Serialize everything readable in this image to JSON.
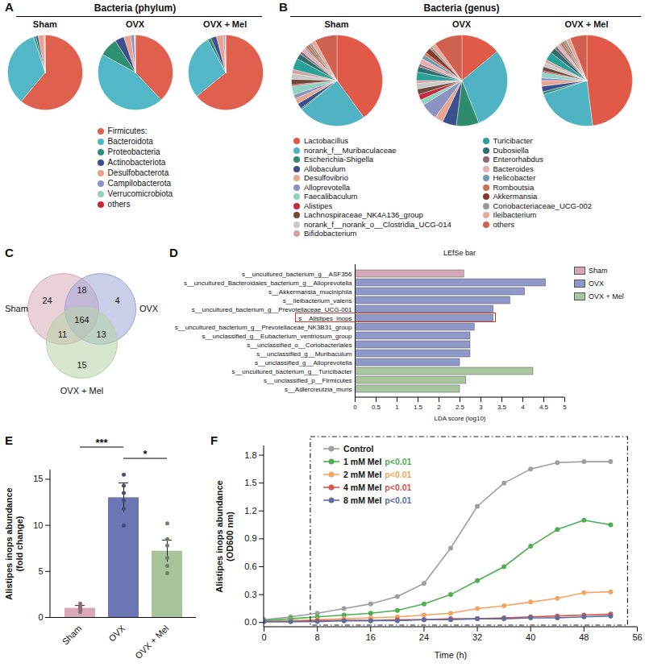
{
  "chart_data": [
    {
      "panel": "A",
      "type": "pie",
      "title": "Bacteria (phylum)",
      "categories": [
        "Firmicutes:",
        "Bacteroidota",
        "Proteobacteria",
        "Actinobacteriota",
        "Desulfobacterota",
        "Campilobacterota",
        "Verrucomicrobiota",
        "others"
      ],
      "colors": [
        "#e0604e",
        "#52b8c8",
        "#2f8f72",
        "#3e4f8e",
        "#e9a28e",
        "#8b93c3",
        "#8fd3c0",
        "#c52a3a"
      ],
      "series": [
        {
          "name": "Sham",
          "values": [
            61,
            34,
            1,
            1,
            2.5,
            0.3,
            0.1,
            0.1
          ]
        },
        {
          "name": "OVX",
          "values": [
            38,
            45,
            8,
            4,
            3,
            1.5,
            0.4,
            0.1
          ]
        },
        {
          "name": "OVX + Mel",
          "values": [
            64,
            28,
            1.5,
            2.5,
            3,
            0.7,
            0.2,
            0.1
          ]
        }
      ]
    },
    {
      "panel": "B",
      "type": "pie",
      "title": "Bacteria (genus)",
      "categories": [
        "Lactobacillus",
        "norank_f__Muribaculaceae",
        "Escherichia-Shigella",
        "Allobaculum",
        "Desulfovibrio",
        "Alloprevotella",
        "Faecalibaculum",
        "Alistipes",
        "Lachnospiraceae_NK4A136_group",
        "norank_f__norank_o__Clostridia_UCG-014",
        "Bifidobacterium",
        "Turicibacter",
        "Dubosiella",
        "Enterorhabdus",
        "Bacteroides",
        "Helicobacter",
        "Romboutsia",
        "Akkermansia",
        "Coriobacteriaceae_UCG-002",
        "Ileibacterium",
        "others"
      ],
      "colors": [
        "#e05a47",
        "#4fb3c4",
        "#2e8b6e",
        "#3b4f8c",
        "#e8a58f",
        "#8a93c2",
        "#8fd3c1",
        "#c7283c",
        "#6b4a3a",
        "#c8c8c8",
        "#d9a0a0",
        "#2aa198",
        "#2e6e6e",
        "#8c6a7a",
        "#e6b0b0",
        "#6e9ab8",
        "#c8734e",
        "#8b3a2a",
        "#999999",
        "#eba898",
        "#d06050"
      ],
      "series": [
        {
          "name": "Sham",
          "values": [
            40,
            24,
            0.5,
            2,
            2,
            1.5,
            3,
            0.5,
            2,
            2,
            1.5,
            4,
            2,
            1,
            1.5,
            0.5,
            1,
            0.5,
            1,
            1.5,
            8
          ]
        },
        {
          "name": "OVX",
          "values": [
            14,
            30,
            8,
            5,
            3,
            6,
            2,
            2,
            2,
            2,
            1,
            3,
            2,
            1,
            2,
            1.5,
            1,
            2,
            1,
            1.5,
            10
          ]
        },
        {
          "name": "OVX + Mel",
          "values": [
            48,
            22,
            1,
            2,
            2,
            1,
            2,
            0.5,
            1.5,
            1.5,
            1,
            3,
            2,
            1,
            1,
            0.5,
            1,
            0.5,
            1,
            1.5,
            6
          ]
        }
      ]
    },
    {
      "panel": "C",
      "type": "venn",
      "series": [
        {
          "name": "Sham",
          "color": "#d9a9b6"
        },
        {
          "name": "OVX",
          "color": "#9ea6d6"
        },
        {
          "name": "OVX + Mel",
          "color": "#b7d3a8"
        }
      ],
      "regions": [
        {
          "sets": [
            "Sham"
          ],
          "value": 24
        },
        {
          "sets": [
            "OVX"
          ],
          "value": 4
        },
        {
          "sets": [
            "OVX + Mel"
          ],
          "value": 15
        },
        {
          "sets": [
            "Sham",
            "OVX"
          ],
          "value": 18
        },
        {
          "sets": [
            "Sham",
            "OVX + Mel"
          ],
          "value": 11
        },
        {
          "sets": [
            "OVX",
            "OVX + Mel"
          ],
          "value": 13
        },
        {
          "sets": [
            "Sham",
            "OVX",
            "OVX + Mel"
          ],
          "value": 164
        }
      ]
    },
    {
      "panel": "D",
      "type": "bar",
      "orientation": "horizontal",
      "title": "LEfSe bar",
      "xlabel": "LDA score (log10)",
      "xlim": [
        0,
        5
      ],
      "xticks": [
        0,
        0.5,
        1,
        1.5,
        2,
        2.5,
        3,
        3.5,
        4,
        4.5,
        5
      ],
      "highlight": "s__Alistipes_inops",
      "series": [
        {
          "name": "Sham",
          "color": "#d4a9b5",
          "categories": [
            "s__uncultured_bacterium_g__ASF356"
          ],
          "values": [
            2.6
          ]
        },
        {
          "name": "OVX",
          "color": "#9097c9",
          "categories": [
            "s__uncultured_Bacteroidales_bacterium_g__Alloprevotella",
            "s__Akkermansia_muciniphila",
            "s__Ileibacterium_valens",
            "s__uncultured_bacterium_g__Prevotellaceae_UCG-001",
            "s__Alistipes_inops",
            "s__uncultured_bacterium_g__Prevotellaceae_NK3B31_group",
            "s__unclassified_g__Eubacterium_ventriosum_group",
            "s__unclassified_o__Coriobacteriales",
            "s__unclassified_g__Muribaculum",
            "s__unclassified_g__Alloprevotella"
          ],
          "values": [
            4.55,
            4.05,
            3.7,
            3.3,
            3.3,
            2.85,
            2.75,
            2.75,
            2.75,
            2.5
          ]
        },
        {
          "name": "OVX + Mel",
          "color": "#a9c6a0",
          "categories": [
            "s__uncultured_bacterium_g__Turicibacter",
            "s__unclassified_p__Firmicutes",
            "s__Adlercreutzia_muris"
          ],
          "values": [
            4.25,
            2.65,
            2.5
          ]
        }
      ]
    },
    {
      "panel": "E",
      "type": "bar",
      "ylabel": "Alistipes inops abundance\n(fold change)",
      "categories": [
        "Sham",
        "OVX",
        "OVX + Mel"
      ],
      "values": [
        1.0,
        13.0,
        7.2
      ],
      "errors": [
        0.3,
        1.6,
        1.2
      ],
      "points": [
        [
          0.6,
          0.8,
          1.0,
          1.2,
          1.5,
          0.9
        ],
        [
          10.0,
          11.8,
          12.7,
          13.5,
          14.3,
          15.5
        ],
        [
          4.8,
          5.6,
          6.5,
          7.8,
          8.5,
          10.2
        ]
      ],
      "colors": [
        "#d9a9b8",
        "#6c76b5",
        "#a9c49a"
      ],
      "ylim": [
        0,
        16
      ],
      "yticks": [
        0,
        5,
        10,
        15
      ],
      "comparisons": [
        {
          "categories": [
            "Sham",
            "OVX"
          ],
          "label": "***"
        },
        {
          "categories": [
            "OVX",
            "OVX + Mel"
          ],
          "label": "*"
        }
      ]
    },
    {
      "panel": "F",
      "type": "line",
      "xlabel": "Time (h)",
      "ylabel": "Alistipes inops abundance\n(OD600 nm)",
      "marker": "circle",
      "x": [
        0,
        4,
        8,
        12,
        16,
        20,
        24,
        28,
        32,
        36,
        40,
        44,
        48,
        52
      ],
      "xlim": [
        0,
        56
      ],
      "xticks": [
        0,
        8,
        16,
        24,
        32,
        40,
        48,
        56
      ],
      "ylim": [
        -0.05,
        1.9
      ],
      "yticks": [
        {
          "value": 0,
          "label": "0.0"
        },
        0.3,
        0.6,
        0.9,
        1.2,
        1.5,
        1.8
      ],
      "series": [
        {
          "name": "Control",
          "color": "#9e9e9e",
          "values": [
            0.03,
            0.06,
            0.1,
            0.15,
            0.2,
            0.28,
            0.42,
            0.8,
            1.25,
            1.5,
            1.65,
            1.72,
            1.73,
            1.73
          ]
        },
        {
          "name": "1 mM Mel",
          "annotation": "p<0.01",
          "color": "#4caf50",
          "values": [
            0.02,
            0.04,
            0.06,
            0.08,
            0.1,
            0.13,
            0.2,
            0.3,
            0.45,
            0.6,
            0.82,
            1.0,
            1.1,
            1.05
          ]
        },
        {
          "name": "2 mM Mel",
          "annotation": "p<0.01",
          "color": "#f4a460",
          "values": [
            0.01,
            0.02,
            0.03,
            0.04,
            0.05,
            0.06,
            0.08,
            0.1,
            0.15,
            0.18,
            0.22,
            0.26,
            0.32,
            0.33
          ]
        },
        {
          "name": "4 mM Mel",
          "annotation": "p<0.01",
          "color": "#d9534f",
          "values": [
            0.01,
            0.01,
            0.02,
            0.02,
            0.02,
            0.03,
            0.03,
            0.04,
            0.04,
            0.05,
            0.06,
            0.07,
            0.08,
            0.09
          ]
        },
        {
          "name": "8 mM Mel",
          "annotation": "p<0.01",
          "color": "#5b6e9e",
          "values": [
            0.01,
            0.01,
            0.01,
            0.02,
            0.02,
            0.02,
            0.03,
            0.03,
            0.04,
            0.04,
            0.05,
            0.05,
            0.06,
            0.07
          ]
        }
      ]
    }
  ]
}
